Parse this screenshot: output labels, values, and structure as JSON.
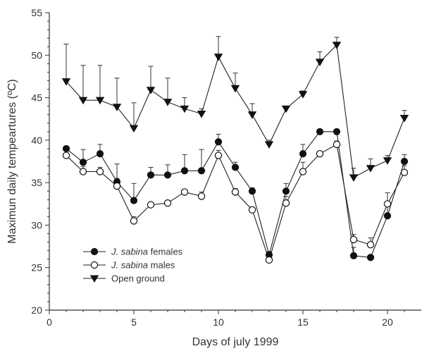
{
  "chart_data": {
    "type": "line",
    "xlabel": "Days of july 1999",
    "ylabel": "Maximun daily tempeartures (ºC)",
    "xlim": [
      0,
      22
    ],
    "ylim": [
      20,
      55
    ],
    "xticks": [
      0,
      5,
      10,
      15,
      20
    ],
    "yticks": [
      20,
      25,
      30,
      35,
      40,
      45,
      50,
      55
    ],
    "grid": false,
    "legend_position": "bottom-left",
    "series": [
      {
        "name_prefix": "J. sabina",
        "name_suffix": " females",
        "marker": "filled-circle",
        "x": [
          1,
          2,
          3,
          4,
          5,
          6,
          7,
          8,
          9,
          10,
          11,
          12,
          13,
          14,
          15,
          16,
          17,
          18,
          19,
          20,
          21
        ],
        "y": [
          39.0,
          37.4,
          38.4,
          35.1,
          32.9,
          35.9,
          35.9,
          36.4,
          36.4,
          39.8,
          36.8,
          34.0,
          26.5,
          34.0,
          38.4,
          41.0,
          41.0,
          26.4,
          26.2,
          31.1,
          37.5
        ],
        "err": [
          0,
          1.5,
          1.1,
          2.1,
          2.0,
          0.9,
          1.2,
          1.9,
          2.5,
          0.9,
          0.6,
          0.4,
          0,
          0.9,
          1.1,
          0,
          0,
          1.0,
          0,
          1.3,
          0.8
        ]
      },
      {
        "name_prefix": "J. sabina",
        "name_suffix": " males",
        "marker": "open-circle",
        "x": [
          1,
          2,
          3,
          4,
          5,
          6,
          7,
          8,
          9,
          10,
          11,
          12,
          13,
          14,
          15,
          16,
          17,
          18,
          19,
          20,
          21
        ],
        "y": [
          38.2,
          36.3,
          36.3,
          34.6,
          30.5,
          32.4,
          32.6,
          33.9,
          33.4,
          38.2,
          33.9,
          31.8,
          25.9,
          32.6,
          36.3,
          38.4,
          39.5,
          28.3,
          27.7,
          32.5,
          36.2
        ],
        "err": [
          0,
          0.6,
          0.5,
          0.9,
          0.5,
          0,
          0.3,
          0.3,
          0.5,
          0.6,
          0.4,
          0,
          1.0,
          0.8,
          1.1,
          0,
          0.4,
          0.6,
          0.8,
          1.3,
          0.8
        ]
      },
      {
        "name": "Open ground",
        "marker": "filled-triangle-down",
        "x": [
          1,
          2,
          3,
          4,
          5,
          6,
          7,
          8,
          9,
          10,
          11,
          12,
          13,
          14,
          15,
          16,
          17,
          18,
          19,
          20,
          21
        ],
        "y": [
          46.9,
          44.7,
          44.7,
          43.9,
          41.4,
          45.9,
          44.5,
          43.7,
          43.1,
          49.8,
          46.1,
          43.0,
          39.5,
          43.7,
          45.4,
          49.2,
          51.2,
          35.6,
          36.7,
          37.6,
          42.6
        ],
        "err": [
          4.4,
          4.1,
          4.1,
          3.4,
          3.0,
          2.8,
          2.8,
          1.3,
          0.6,
          2.4,
          1.8,
          1.3,
          0.5,
          0,
          0.4,
          1.2,
          0.9,
          1.1,
          1.1,
          0.6,
          0.9
        ]
      }
    ]
  }
}
